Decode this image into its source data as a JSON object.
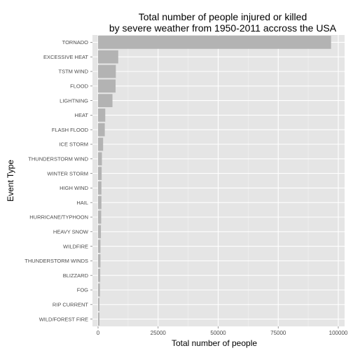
{
  "chart_data": {
    "type": "bar",
    "orientation": "horizontal",
    "title_line1": "Total number of people injured or killed",
    "title_line2": "by severe weather from 1950-2011 accross the USA",
    "xlabel": "Total number of people",
    "ylabel": "Event Type",
    "xlim": [
      0,
      100000
    ],
    "xticks": [
      0,
      25000,
      50000,
      75000,
      100000
    ],
    "xtick_labels": [
      "0",
      "25000",
      "50000",
      "75000",
      "100000"
    ],
    "grid": true,
    "categories": [
      "TORNADO",
      "EXCESSIVE HEAT",
      "TSTM WIND",
      "FLOOD",
      "LIGHTNING",
      "HEAT",
      "FLASH FLOOD",
      "ICE STORM",
      "THUNDERSTORM WIND",
      "WINTER STORM",
      "HIGH WIND",
      "HAIL",
      "HURRICANE/TYPHOON",
      "HEAVY SNOW",
      "WILDFIRE",
      "THUNDERSTORM WINDS",
      "BLIZZARD",
      "FOG",
      "RIP CURRENT",
      "WILD/FOREST FIRE"
    ],
    "values": [
      97000,
      8400,
      7400,
      7300,
      6000,
      3000,
      2800,
      2100,
      1600,
      1500,
      1400,
      1400,
      1300,
      1200,
      1000,
      1000,
      900,
      800,
      600,
      600
    ],
    "colors": {
      "bar": "#b3b3b3",
      "panel": "#e5e5e5",
      "grid_major": "#ffffff",
      "grid_minor": "#f2f2f2"
    }
  }
}
